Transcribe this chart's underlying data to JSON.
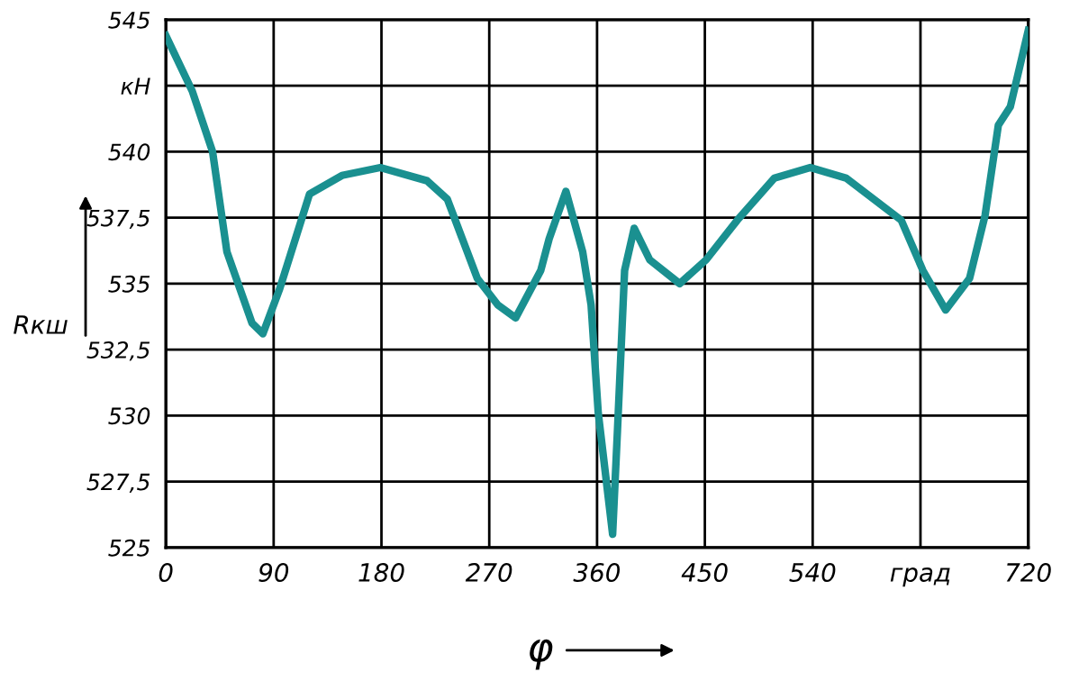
{
  "chart_data": {
    "type": "line",
    "xlabel": "φ",
    "ylabel": "Rкш",
    "grid": true,
    "marker": "none",
    "line_style": "solid",
    "xlim": [
      0,
      720
    ],
    "ylim": [
      525,
      545
    ],
    "xticks": [
      0,
      90,
      180,
      270,
      360,
      450,
      540,
      {
        "value": 630,
        "label": "град"
      },
      720
    ],
    "yticks": [
      525,
      {
        "value": 527.5,
        "label": "527,5"
      },
      530,
      {
        "value": 532.5,
        "label": "532,5"
      },
      535,
      {
        "value": 537.5,
        "label": "537,5"
      },
      540,
      {
        "value": 542.5,
        "label": "кН"
      },
      545
    ],
    "x": [
      0,
      22,
      39,
      51,
      72,
      81,
      95,
      120,
      147,
      179,
      218,
      235,
      260,
      277,
      292,
      313,
      320,
      334,
      348,
      355,
      361,
      373,
      377,
      383,
      391,
      404,
      429,
      451,
      477,
      508,
      538,
      568,
      614,
      632,
      651,
      671,
      684,
      695,
      705,
      720
    ],
    "series": [
      {
        "color": "#1a9090",
        "values": [
          544.4,
          542.3,
          540.0,
          536.2,
          533.5,
          533.1,
          534.8,
          538.4,
          539.1,
          539.4,
          538.9,
          538.2,
          535.2,
          534.2,
          533.7,
          535.5,
          536.7,
          538.5,
          536.2,
          534.2,
          530.1,
          525.5,
          529.4,
          535.5,
          537.1,
          535.9,
          535.0,
          535.9,
          537.4,
          539.0,
          539.4,
          539.0,
          537.4,
          535.5,
          534.0,
          535.2,
          537.6,
          541.0,
          541.7,
          544.6
        ]
      }
    ]
  }
}
